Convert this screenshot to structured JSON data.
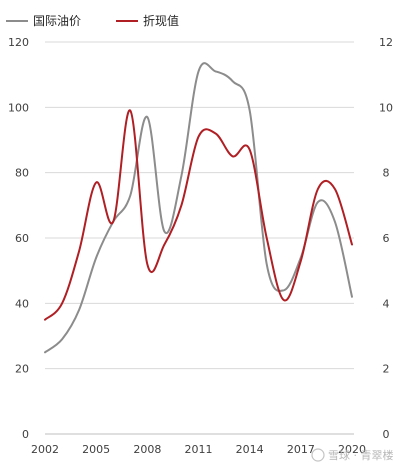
{
  "chart_data": {
    "type": "line",
    "x": [
      2002,
      2003,
      2004,
      2005,
      2006,
      2007,
      2008,
      2009,
      2010,
      2011,
      2012,
      2013,
      2014,
      2015,
      2016,
      2017,
      2018,
      2019,
      2020
    ],
    "series": [
      {
        "name": "国际油价",
        "axis": "left",
        "color": "#8c8c8c",
        "values": [
          25,
          29,
          38,
          54,
          65,
          73,
          97,
          62,
          79,
          111,
          111,
          108,
          99,
          52,
          44,
          54,
          71,
          65,
          42
        ]
      },
      {
        "name": "折现值",
        "axis": "right",
        "color": "#b01f24",
        "values": [
          3.5,
          4.0,
          5.6,
          7.7,
          6.5,
          9.9,
          5.2,
          5.8,
          7.0,
          9.1,
          9.2,
          8.5,
          8.7,
          6.0,
          4.1,
          5.3,
          7.5,
          7.5,
          5.8
        ]
      }
    ],
    "x_tick_labels": [
      "2002",
      "2005",
      "2008",
      "2011",
      "2014",
      "2017",
      "2020"
    ],
    "x_tick_values": [
      2002,
      2005,
      2008,
      2011,
      2014,
      2017,
      2020
    ],
    "y_left": {
      "ticks": [
        "0",
        "20",
        "40",
        "60",
        "80",
        "100",
        "120"
      ],
      "values": [
        0,
        20,
        40,
        60,
        80,
        100,
        120
      ],
      "ylim": [
        0,
        120
      ]
    },
    "y_right": {
      "ticks": [
        "0",
        "2",
        "4",
        "6",
        "8",
        "10",
        "12"
      ],
      "values": [
        0,
        2,
        4,
        6,
        8,
        10,
        12
      ],
      "ylim": [
        0,
        12
      ]
    },
    "xlim": [
      2002,
      2020
    ],
    "grid": "horizontal",
    "legend_position": "top-left"
  },
  "watermark": "雪球 · 青翠楼"
}
